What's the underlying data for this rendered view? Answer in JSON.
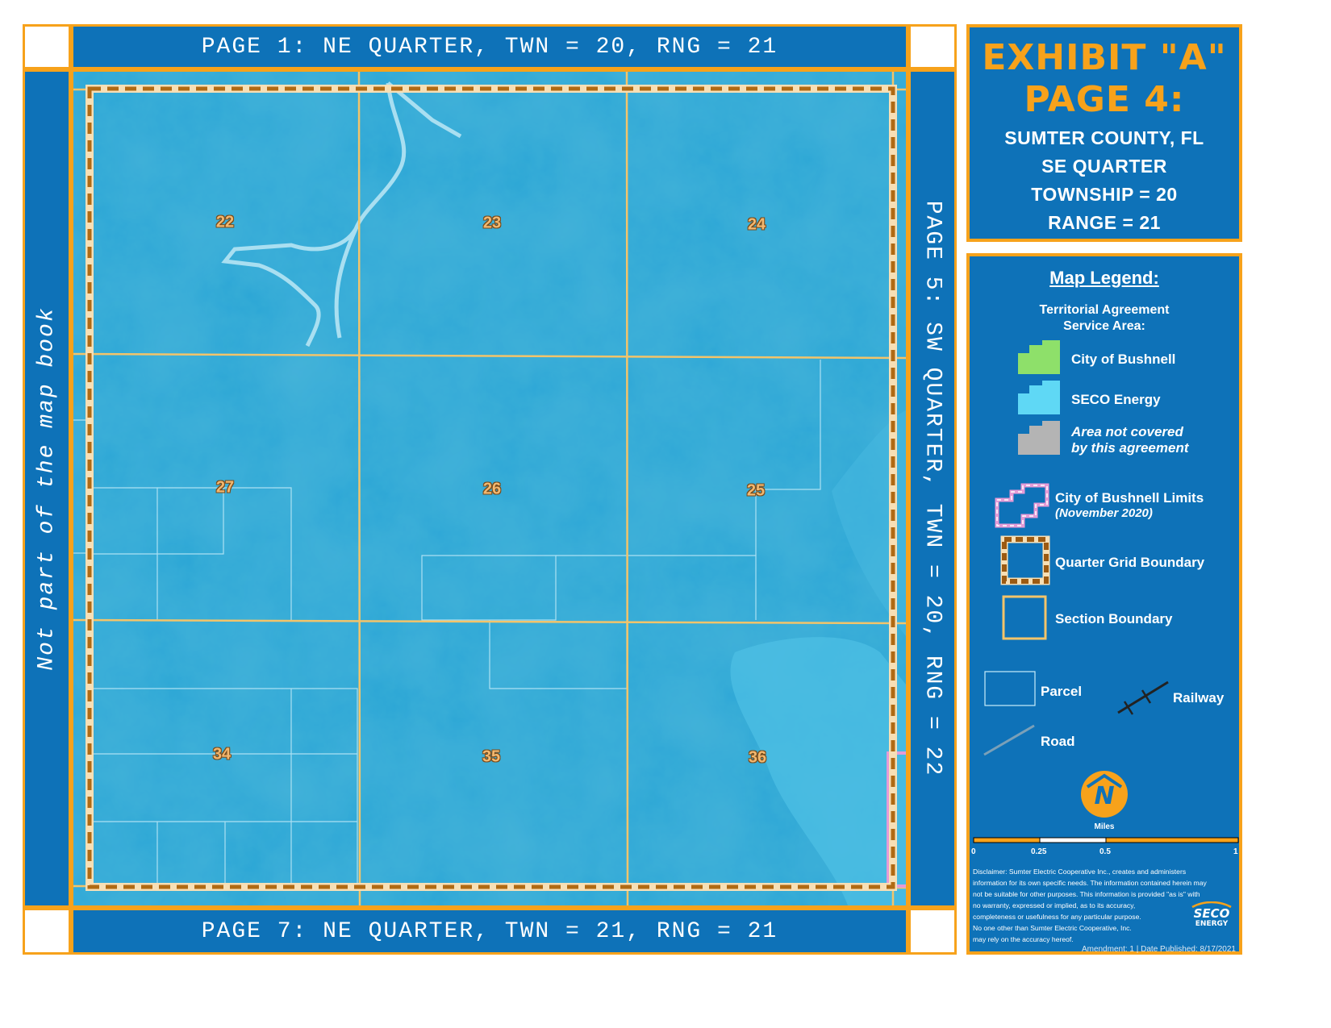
{
  "nav": {
    "top": "PAGE 1: NE QUARTER, TWN = 20, RNG = 21",
    "bottom": "PAGE 7: NE QUARTER, TWN = 21, RNG = 21",
    "left": "Not part of the map book",
    "right": "PAGE 5: SW QUARTER, TWN = 20, RNG = 22"
  },
  "title": {
    "exhibit": "EXHIBIT \"A\"",
    "page": "PAGE 4:",
    "county": "SUMTER COUNTY, FL",
    "quarter": "SE QUARTER",
    "township": "TOWNSHIP = 20",
    "range": "RANGE = 21"
  },
  "sections": [
    "22",
    "23",
    "24",
    "27",
    "26",
    "25",
    "34",
    "35",
    "36"
  ],
  "legend": {
    "heading": "Map Legend:",
    "subheading_1": "Territorial Agreement",
    "subheading_2": "Service Area:",
    "bushnell": "City of Bushnell",
    "seco": "SECO Energy",
    "not_covered_1": "Area not covered",
    "not_covered_2": "by this agreement",
    "limits_1": "City of Bushnell Limits",
    "limits_2": "(November 2020)",
    "quarter_grid": "Quarter Grid Boundary",
    "section_boundary": "Section Boundary",
    "parcel": "Parcel",
    "railway": "Railway",
    "road": "Road",
    "north_letter": "N",
    "scale_unit": "Miles",
    "scale_ticks": [
      "0",
      "0.25",
      "0.5",
      "1"
    ],
    "disclaimer": [
      "Disclaimer: Sumter Electric Cooperative Inc., creates and administers",
      "information for its own specific needs. The information contained herein may",
      "not be suitable for other purposes. This information is provided \"as is\" with",
      "no warranty, expressed or implied, as to its accuracy,",
      "completeness or usefulness for any particular purpose.",
      "No one other than Sumter Electric Cooperative, Inc.",
      "may rely on the accuracy hereof."
    ],
    "logo_1": "SECO",
    "logo_2": "ENERGY",
    "footer": "Amendment: 1 | Date Published: 8/17/2021"
  },
  "colors": {
    "accent_orange": "#f7a21b",
    "panel_blue": "#0e72b8",
    "map_blue": "#2aa5d6",
    "bushnell_green": "#8ee06a",
    "seco_blue": "#5fd8f5",
    "not_covered_gray": "#b4b4b4",
    "limits_pink": "#e59bd6"
  }
}
